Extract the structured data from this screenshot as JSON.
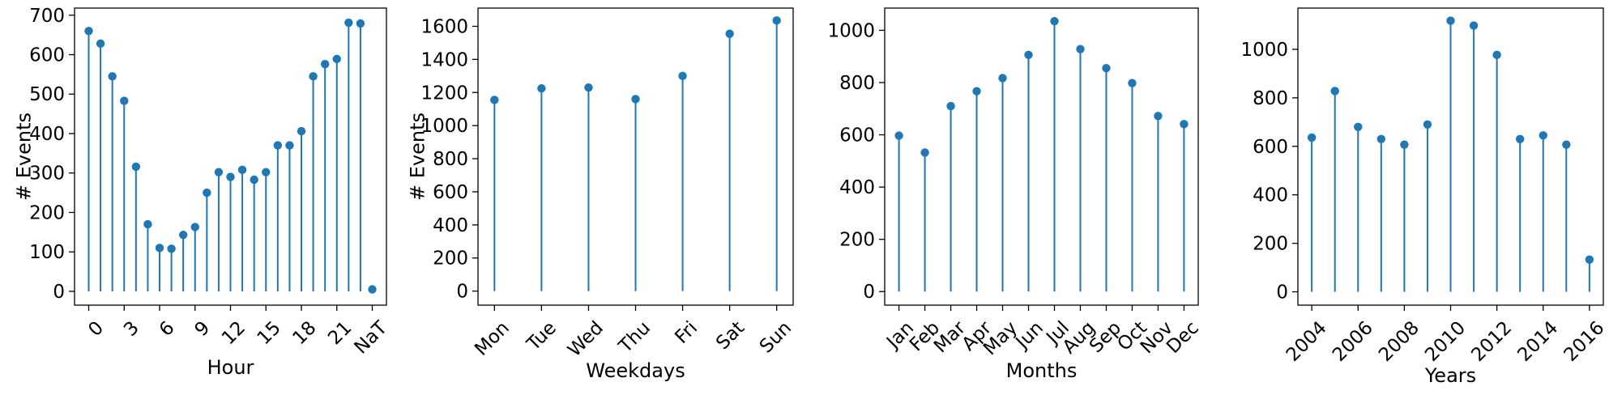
{
  "colors": {
    "stem": "#1f77b4",
    "axis": "#000000",
    "background": "#ffffff"
  },
  "chart_data": [
    {
      "type": "stem",
      "xlabel": "Hour",
      "ylabel": "# Events",
      "ylim": [
        -35,
        718
      ],
      "yticks": [
        0,
        100,
        200,
        300,
        400,
        500,
        600,
        700
      ],
      "tick_labels_x": [
        "0",
        "3",
        "6",
        "9",
        "12",
        "15",
        "18",
        "21",
        "NaT"
      ],
      "tick_positions_x": [
        0,
        3,
        6,
        9,
        12,
        15,
        18,
        21,
        24
      ],
      "x": [
        0,
        1,
        2,
        3,
        4,
        5,
        6,
        7,
        8,
        9,
        10,
        11,
        12,
        13,
        14,
        15,
        16,
        17,
        18,
        19,
        20,
        21,
        22,
        23,
        24
      ],
      "values": [
        660,
        628,
        545,
        483,
        316,
        170,
        110,
        108,
        143,
        163,
        250,
        302,
        290,
        308,
        283,
        302,
        370,
        370,
        406,
        545,
        576,
        589,
        681,
        679,
        5
      ],
      "xlim": [
        -1.2,
        25.2
      ],
      "x_rotation": 45
    },
    {
      "type": "stem",
      "xlabel": "Weekdays",
      "ylabel": "# Events",
      "ylim": [
        -85,
        1710
      ],
      "yticks": [
        0,
        200,
        400,
        600,
        800,
        1000,
        1200,
        1400,
        1600
      ],
      "categories": [
        "Mon",
        "Tue",
        "Wed",
        "Thu",
        "Fri",
        "Sat",
        "Sun"
      ],
      "values": [
        1155,
        1225,
        1230,
        1160,
        1300,
        1555,
        1635
      ],
      "xlim": [
        -0.35,
        6.35
      ],
      "x_rotation": 45
    },
    {
      "type": "stem",
      "xlabel": "Months",
      "ylabel": "",
      "ylim": [
        -52,
        1085
      ],
      "yticks": [
        0,
        200,
        400,
        600,
        800,
        1000
      ],
      "categories": [
        "Jan",
        "Feb",
        "Mar",
        "Apr",
        "May",
        "Jun",
        "Jul",
        "Aug",
        "Sep",
        "Oct",
        "Nov",
        "Dec"
      ],
      "values": [
        597,
        532,
        710,
        767,
        817,
        906,
        1035,
        928,
        855,
        798,
        672,
        641
      ],
      "xlim": [
        -0.55,
        11.55
      ],
      "x_rotation": 45
    },
    {
      "type": "stem",
      "xlabel": "Years",
      "ylabel": "",
      "ylim": [
        -55,
        1170
      ],
      "yticks": [
        0,
        200,
        400,
        600,
        800,
        1000
      ],
      "tick_labels_x": [
        "2004",
        "2006",
        "2008",
        "2010",
        "2012",
        "2014",
        "2016"
      ],
      "tick_positions_x": [
        2004,
        2006,
        2008,
        2010,
        2012,
        2014,
        2016
      ],
      "x": [
        2004,
        2005,
        2006,
        2007,
        2008,
        2009,
        2010,
        2011,
        2012,
        2013,
        2014,
        2015,
        2016
      ],
      "values": [
        636,
        828,
        680,
        630,
        607,
        690,
        1118,
        1098,
        977,
        630,
        645,
        607,
        133
      ],
      "xlim": [
        2003.4,
        2016.6
      ],
      "x_rotation": 45
    }
  ]
}
